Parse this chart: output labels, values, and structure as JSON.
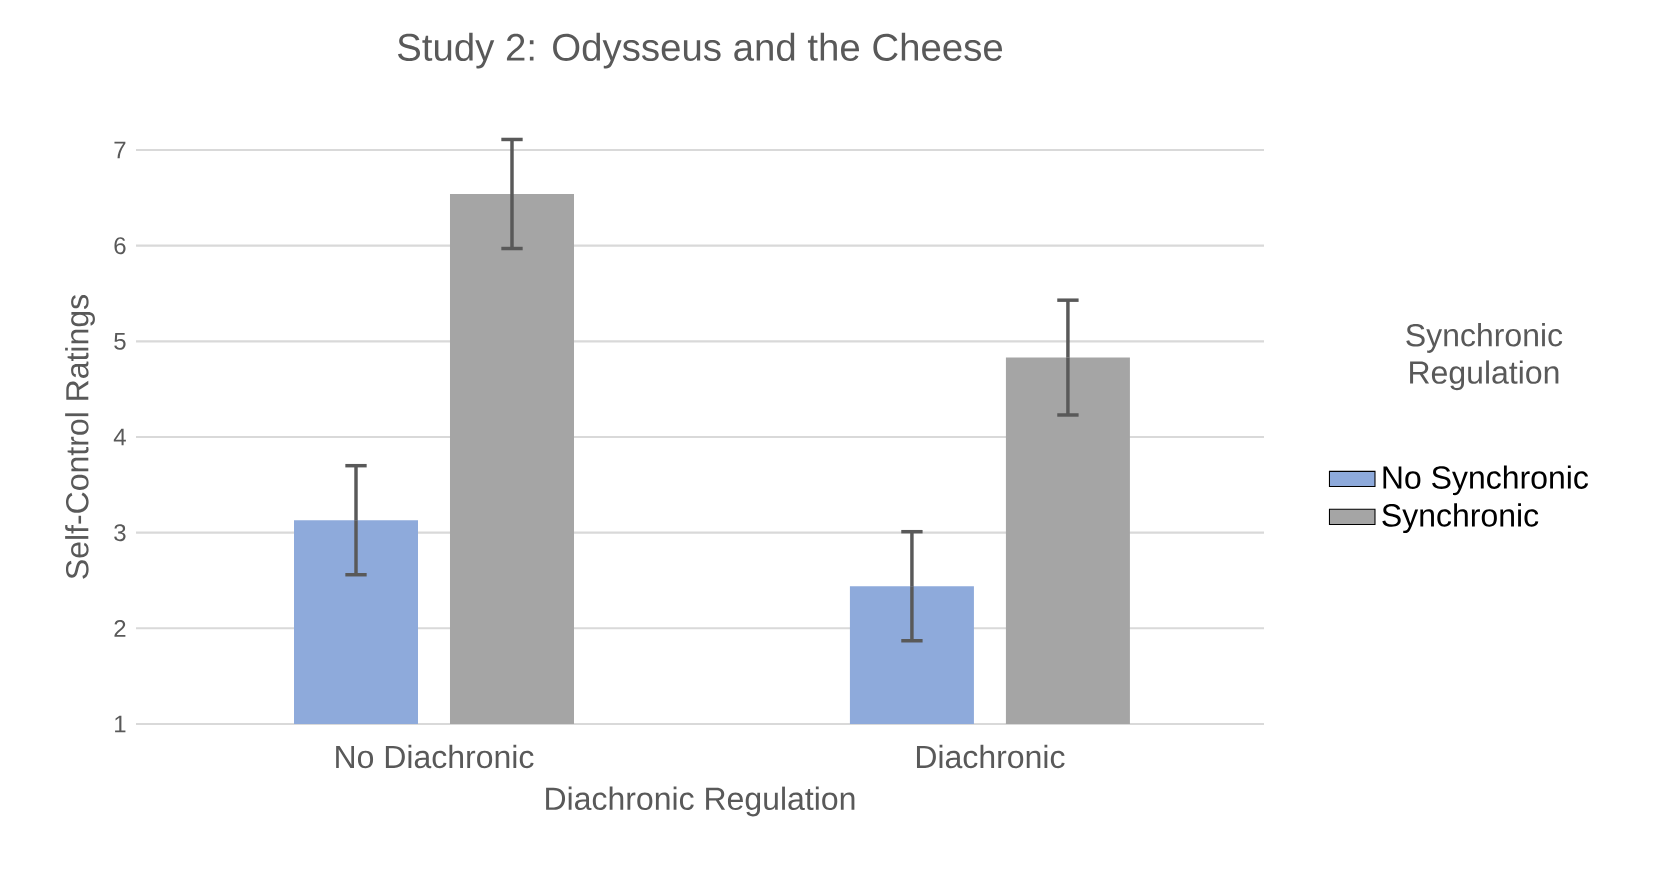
{
  "chart_data": {
    "type": "bar",
    "title": "Study 2: Odysseus and the Cheese",
    "xlabel": "Diachronic Regulation",
    "ylabel": "Self-Control Ratings",
    "legend_title": "Synchronic Regulation",
    "categories": [
      "No Diachronic",
      "Diachronic"
    ],
    "series": [
      {
        "name": "No Synchronic",
        "color": "#8eaadb",
        "values": [
          3.13,
          2.44
        ],
        "errors": [
          0.57,
          0.57
        ]
      },
      {
        "name": "Synchronic",
        "color": "#a5a5a5",
        "values": [
          6.54,
          4.83
        ],
        "errors": [
          0.57,
          0.6
        ]
      }
    ],
    "ylim": [
      1,
      7
    ],
    "yticks": [
      1,
      2,
      3,
      4,
      5,
      6,
      7
    ],
    "grid": "y",
    "legend": "right"
  }
}
